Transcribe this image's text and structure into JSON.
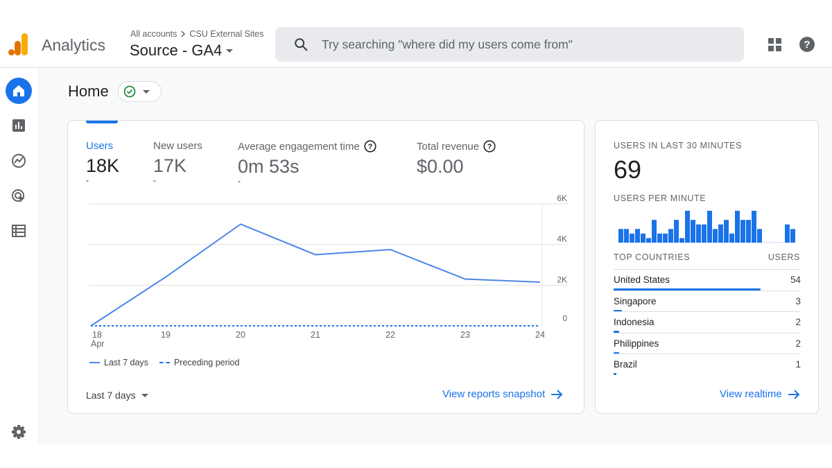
{
  "header": {
    "app_name": "Analytics",
    "breadcrumb_root": "All accounts",
    "breadcrumb_account": "CSU External Sites",
    "property": "Source - GA4",
    "search_placeholder": "Try searching \"where did my users come from\""
  },
  "page": {
    "title": "Home"
  },
  "metrics": [
    {
      "label": "Users",
      "value": "18K",
      "delta": "-"
    },
    {
      "label": "New users",
      "value": "17K",
      "delta": "-"
    },
    {
      "label": "Average engagement time",
      "value": "0m 53s",
      "delta": "-"
    },
    {
      "label": "Total revenue",
      "value": "$0.00"
    }
  ],
  "chart_data": {
    "type": "line",
    "x": [
      "18",
      "19",
      "20",
      "21",
      "22",
      "23",
      "24"
    ],
    "x_sublabel_first": "Apr",
    "series": [
      {
        "name": "Last 7 days",
        "values": [
          0,
          2400,
          5000,
          3500,
          3750,
          2300,
          2150
        ]
      },
      {
        "name": "Preceding period",
        "values": [
          0,
          0,
          0,
          0,
          0,
          0,
          0
        ]
      }
    ],
    "y_ticks": [
      "0",
      "2K",
      "4K",
      "6K"
    ],
    "ylim": [
      0,
      6000
    ],
    "colors": {
      "current": "#4a86e8",
      "previous": "#1a73e8"
    }
  },
  "footer": {
    "date_range": "Last 7 days",
    "view_reports": "View reports snapshot"
  },
  "realtime": {
    "users_heading": "USERS IN LAST 30 MINUTES",
    "users_count": "69",
    "per_minute_heading": "USERS PER MINUTE",
    "per_minute_values": [
      3,
      3,
      2,
      3,
      2,
      1,
      5,
      2,
      2,
      3,
      5,
      1,
      7,
      5,
      4,
      4,
      7,
      3,
      4,
      5,
      2,
      7,
      5,
      5,
      7,
      3,
      0,
      0,
      0,
      0,
      4,
      3
    ],
    "countries_heading": "TOP COUNTRIES",
    "users_col_heading": "USERS",
    "countries": [
      {
        "name": "United States",
        "users": "54",
        "share": 0.786
      },
      {
        "name": "Singapore",
        "users": "3",
        "share": 0.044
      },
      {
        "name": "Indonesia",
        "users": "2",
        "share": 0.029
      },
      {
        "name": "Philippines",
        "users": "2",
        "share": 0.029
      },
      {
        "name": "Brazil",
        "users": "1",
        "share": 0.015
      }
    ],
    "view_realtime": "View realtime"
  },
  "colors": {
    "accent": "#1a73e8",
    "logo_orange": "#f9ab00",
    "logo_dark_orange": "#e37400",
    "success": "#1e8e3e"
  }
}
